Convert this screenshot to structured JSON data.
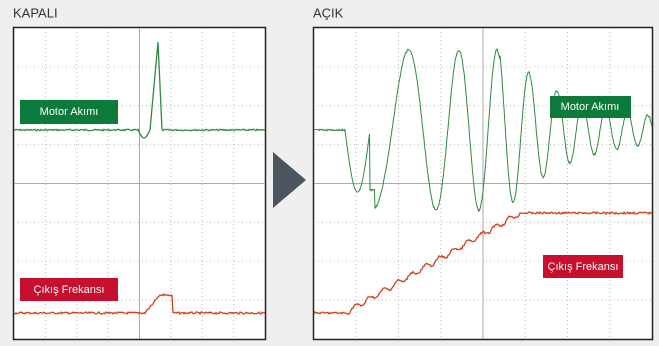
{
  "panels": [
    {
      "title": "KAPALI",
      "current_label": "Motor Akımı",
      "frequency_label": "Çıkış Frekansı"
    },
    {
      "title": "AÇIK",
      "current_label": "Motor Akımı",
      "frequency_label": "Çıkış Frekansı"
    }
  ]
}
